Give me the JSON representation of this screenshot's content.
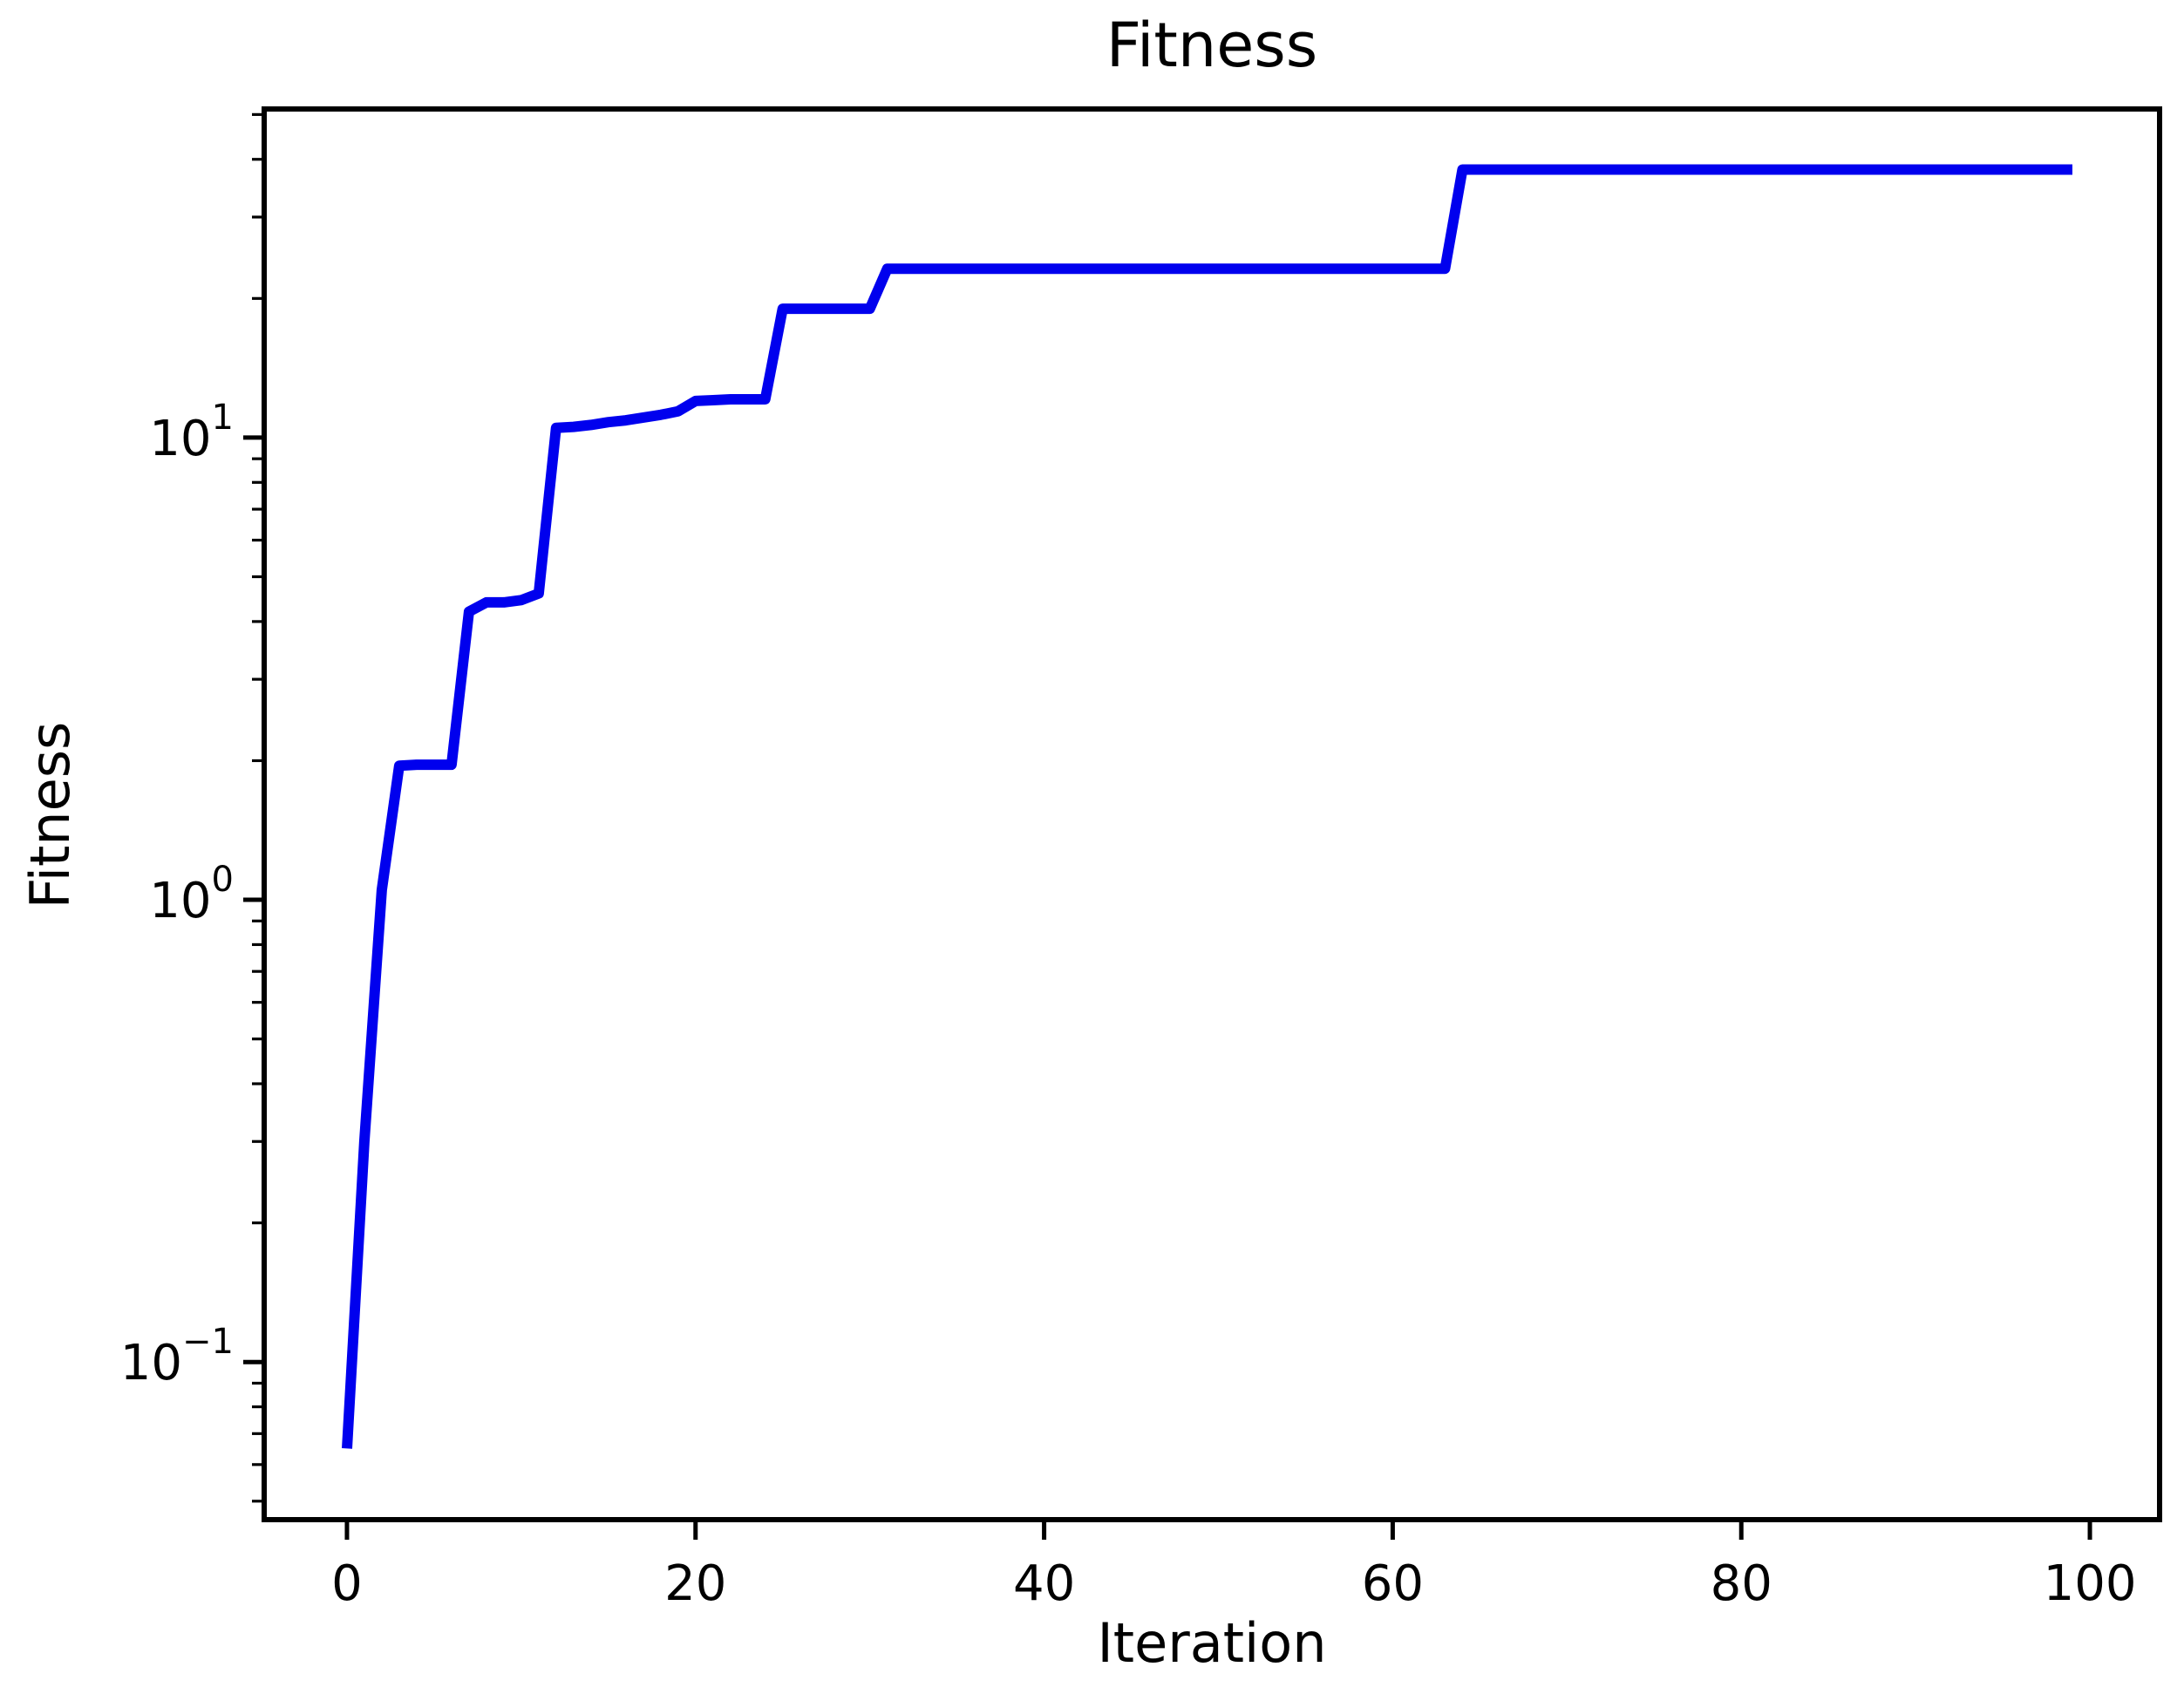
{
  "chart_data": {
    "type": "line",
    "title": "Fitness",
    "xlabel": "Iteration",
    "ylabel": "Fitness",
    "yscale": "log",
    "grid": false,
    "legend_position": "none",
    "x": [
      0,
      1,
      2,
      3,
      4,
      5,
      6,
      7,
      8,
      9,
      10,
      11,
      12,
      13,
      14,
      15,
      16,
      17,
      18,
      19,
      20,
      21,
      22,
      23,
      24,
      25,
      26,
      27,
      28,
      29,
      30,
      31,
      32,
      33,
      34,
      35,
      36,
      37,
      38,
      39,
      40,
      41,
      42,
      43,
      44,
      45,
      46,
      47,
      48,
      49,
      50,
      51,
      52,
      53,
      54,
      55,
      56,
      57,
      58,
      59,
      60,
      61,
      62,
      63,
      64,
      65,
      66,
      67,
      68,
      69,
      70,
      71,
      72,
      73,
      74,
      75,
      76,
      77,
      78,
      79,
      80,
      81,
      82,
      83,
      84,
      85,
      86,
      87,
      88,
      89,
      90,
      91,
      92,
      93,
      94,
      95,
      96,
      97,
      98,
      99
    ],
    "y": [
      0.065,
      0.3,
      1.05,
      1.95,
      1.96,
      1.96,
      1.96,
      4.2,
      4.4,
      4.4,
      4.45,
      4.6,
      10.5,
      10.55,
      10.65,
      10.8,
      10.9,
      11.05,
      11.2,
      11.4,
      12.0,
      12.05,
      12.1,
      12.1,
      12.1,
      19.0,
      19.0,
      19.0,
      19.0,
      19.0,
      19.0,
      23.2,
      23.2,
      23.2,
      23.2,
      23.2,
      23.2,
      23.2,
      23.2,
      23.2,
      23.2,
      23.2,
      23.2,
      23.2,
      23.2,
      23.2,
      23.2,
      23.2,
      23.2,
      23.2,
      23.2,
      23.2,
      23.2,
      23.2,
      23.2,
      23.2,
      23.2,
      23.2,
      23.2,
      23.2,
      23.2,
      23.2,
      23.2,
      23.2,
      38.0,
      38.0,
      38.0,
      38.0,
      38.0,
      38.0,
      38.0,
      38.0,
      38.0,
      38.0,
      38.0,
      38.0,
      38.0,
      38.0,
      38.0,
      38.0,
      38.0,
      38.0,
      38.0,
      38.0,
      38.0,
      38.0,
      38.0,
      38.0,
      38.0,
      38.0,
      38.0,
      38.0,
      38.0,
      38.0,
      38.0,
      38.0,
      38.0,
      38.0,
      38.0,
      38.0
    ],
    "xticks": [
      0,
      20,
      40,
      60,
      80,
      100
    ],
    "ytick_major_exponents": [
      1,
      0,
      -1
    ],
    "ytick_major_values": [
      10,
      1,
      0.1
    ],
    "yticks_minor": [
      0.05,
      0.06,
      0.07,
      0.08,
      0.09,
      0.2,
      0.3,
      0.4,
      0.5,
      0.6,
      0.7,
      0.8,
      0.9,
      2,
      3,
      4,
      5,
      6,
      7,
      8,
      9,
      20,
      30,
      40,
      50
    ],
    "xlim": [
      -4.75,
      104.0
    ],
    "ylim": [
      0.0456,
      51.4
    ],
    "line_color": "#0000ee",
    "axis_color": "#000000",
    "background_color": "#ffffff"
  }
}
